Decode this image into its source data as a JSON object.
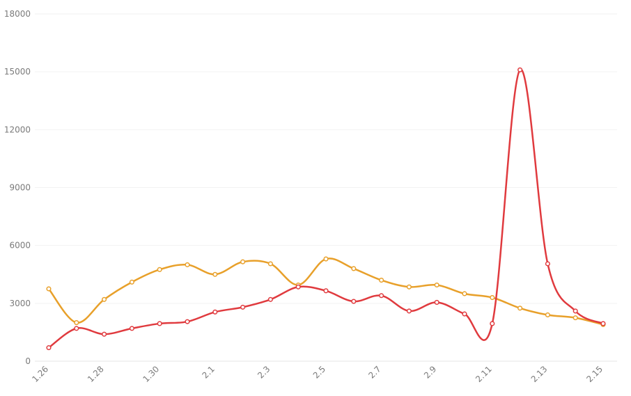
{
  "chart_data": {
    "type": "line",
    "title": "",
    "xlabel": "",
    "ylabel": "",
    "categories": [
      "1.26",
      "1.27",
      "1.28",
      "1.29",
      "1.30",
      "1.31",
      "2.1",
      "2.2",
      "2.3",
      "2.4",
      "2.5",
      "2.6",
      "2.7",
      "2.8",
      "2.9",
      "2.10",
      "2.11",
      "2.12",
      "2.13",
      "2.14",
      "2.15"
    ],
    "x_tick_labels": [
      "1.26",
      "1.28",
      "1.30",
      "2.1",
      "2.3",
      "2.5",
      "2.7",
      "2.9",
      "2.11",
      "2.13",
      "2.15"
    ],
    "y_ticks": [
      "0",
      "3000",
      "6000",
      "9000",
      "12000",
      "15000",
      "18000"
    ],
    "ylim": [
      0,
      18000
    ],
    "grid": true,
    "legend": "none",
    "series": [
      {
        "color": "#e8a02a",
        "values": [
          3750,
          2000,
          3200,
          4100,
          4750,
          5000,
          4500,
          5150,
          5050,
          3950,
          5300,
          4800,
          4200,
          3850,
          3950,
          3500,
          3300,
          2750,
          2400,
          2250,
          1900
        ]
      },
      {
        "color": "#e03a3e",
        "values": [
          700,
          1700,
          1400,
          1700,
          1950,
          2050,
          2550,
          2800,
          3200,
          3850,
          3650,
          3100,
          3400,
          2600,
          3050,
          2450,
          1950,
          15100,
          5050,
          2600,
          1950
        ]
      }
    ]
  }
}
